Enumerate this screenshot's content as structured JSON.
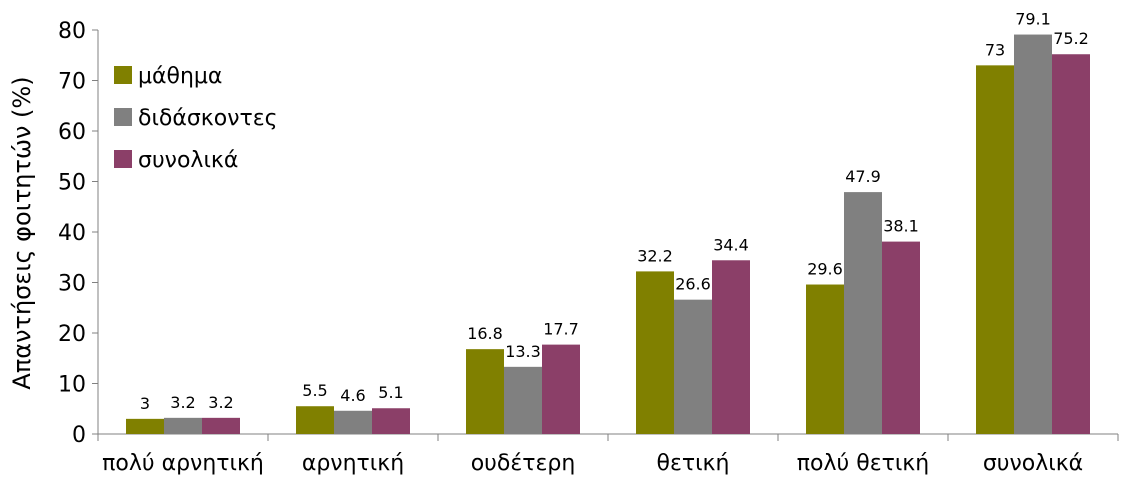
{
  "chart_data": {
    "type": "bar",
    "ylabel": "Απαντήσεις φοιτητών (%)",
    "xlabel": "",
    "ylim": [
      0,
      80
    ],
    "yticks": [
      0,
      10,
      20,
      30,
      40,
      50,
      60,
      70,
      80
    ],
    "grid": false,
    "legend_position": "top-left",
    "categories": [
      "πολύ αρνητική",
      "αρνητική",
      "ουδέτερη",
      "θετική",
      "πολύ θετική",
      "συνολικά"
    ],
    "series": [
      {
        "name": "μάθημα",
        "color": "#808000",
        "values": [
          3,
          5.5,
          16.8,
          32.2,
          29.6,
          73
        ]
      },
      {
        "name": "διδάσκοντες",
        "color": "#808080",
        "values": [
          3.2,
          4.6,
          13.3,
          26.6,
          47.9,
          79.1
        ]
      },
      {
        "name": "συνολικά",
        "color": "#8B3F68",
        "values": [
          3.2,
          5.1,
          17.7,
          34.4,
          38.1,
          75.2
        ]
      }
    ]
  }
}
